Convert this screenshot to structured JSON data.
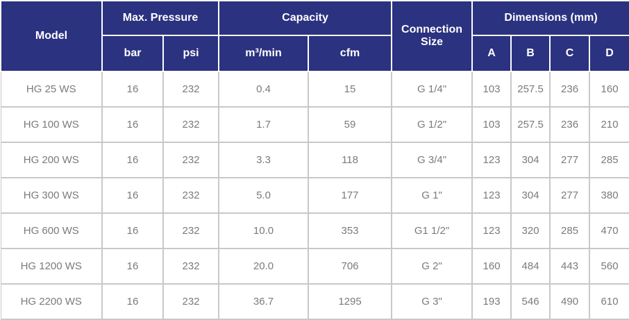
{
  "headers": {
    "model": "Model",
    "max_pressure": "Max. Pressure",
    "capacity": "Capacity",
    "connection_size_line1": "Connection",
    "connection_size_line2": "Size",
    "dimensions": "Dimensions (mm)",
    "bar": "bar",
    "psi": "psi",
    "m3min": "m³/min",
    "cfm": "cfm",
    "a": "A",
    "b": "B",
    "c": "C",
    "d": "D"
  },
  "rows": [
    [
      "HG 25 WS",
      "16",
      "232",
      "0.4",
      "15",
      "G 1/4\"",
      "103",
      "257.5",
      "236",
      "160"
    ],
    [
      "HG 100 WS",
      "16",
      "232",
      "1.7",
      "59",
      "G 1/2\"",
      "103",
      "257.5",
      "236",
      "210"
    ],
    [
      "HG 200 WS",
      "16",
      "232",
      "3.3",
      "118",
      "G 3/4\"",
      "123",
      "304",
      "277",
      "285"
    ],
    [
      "HG 300 WS",
      "16",
      "232",
      "5.0",
      "177",
      "G 1\"",
      "123",
      "304",
      "277",
      "380"
    ],
    [
      "HG 600 WS",
      "16",
      "232",
      "10.0",
      "353",
      "G1 1/2\"",
      "123",
      "320",
      "285",
      "470"
    ],
    [
      "HG 1200 WS",
      "16",
      "232",
      "20.0",
      "706",
      "G 2\"",
      "160",
      "484",
      "443",
      "560"
    ],
    [
      "HG 2200 WS",
      "16",
      "232",
      "36.7",
      "1295",
      "G 3\"",
      "193",
      "546",
      "490",
      "610"
    ]
  ]
}
